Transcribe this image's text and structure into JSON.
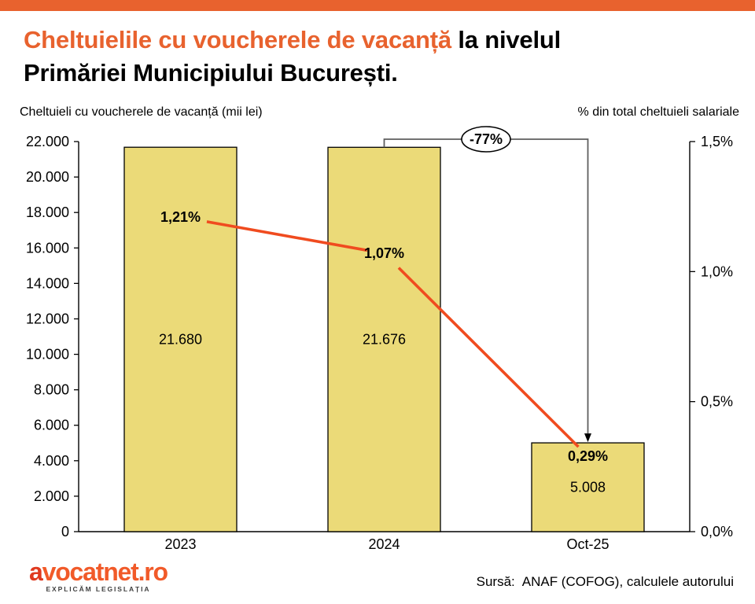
{
  "header": {
    "accent_color": "#E8622E",
    "title_highlight": "Cheltuielile cu voucherele de vacanță",
    "title_rest": " la nivelul",
    "title_line2": "Primăriei Municipiului București."
  },
  "chart_data": {
    "type": "bar",
    "title": "Cheltuielile cu voucherele de vacanță la nivelul Primăriei Municipiului București.",
    "categories": [
      "2023",
      "2024",
      "Oct-25"
    ],
    "series": [
      {
        "name": "Cheltuieli cu voucherele de vacanță (mii lei)",
        "type": "bar",
        "axis": "left",
        "values": [
          21680,
          21676,
          5008
        ],
        "value_labels": [
          "21.680",
          "21.676",
          "5.008"
        ],
        "color": "#EBDA78",
        "border_color": "#000000"
      },
      {
        "name": "% din total cheltuieli salariale",
        "type": "line",
        "axis": "right",
        "values": [
          1.21,
          1.07,
          0.29
        ],
        "value_labels": [
          "1,21%",
          "1,07%",
          "0,29%"
        ],
        "color": "#F04B1F"
      }
    ],
    "left_axis": {
      "title": "Cheltuieli cu voucherele de vacanță (mii lei)",
      "min": 0,
      "max": 22000,
      "step": 2000,
      "tick_labels": [
        "22.000",
        "20.000",
        "18.000",
        "16.000",
        "14.000",
        "12.000",
        "10.000",
        "8.000",
        "6.000",
        "4.000",
        "2.000",
        "0"
      ]
    },
    "right_axis": {
      "title": "% din total cheltuieli salariale",
      "min": 0,
      "max": 1.5,
      "step": 0.5,
      "tick_labels": [
        "1,5%",
        "1,0%",
        "0,5%",
        "0,0%"
      ]
    },
    "annotation": {
      "text": "-77%",
      "from_category": "2024",
      "to_category": "Oct-25"
    },
    "grid": false,
    "legend": "none"
  },
  "footer": {
    "logo_text": "avocatnet.ro",
    "logo_tagline": "EXPLICĂM LEGISLAȚIA",
    "source_label": "Sursă:",
    "source_text": "ANAF (COFOG), calculele autorului"
  }
}
